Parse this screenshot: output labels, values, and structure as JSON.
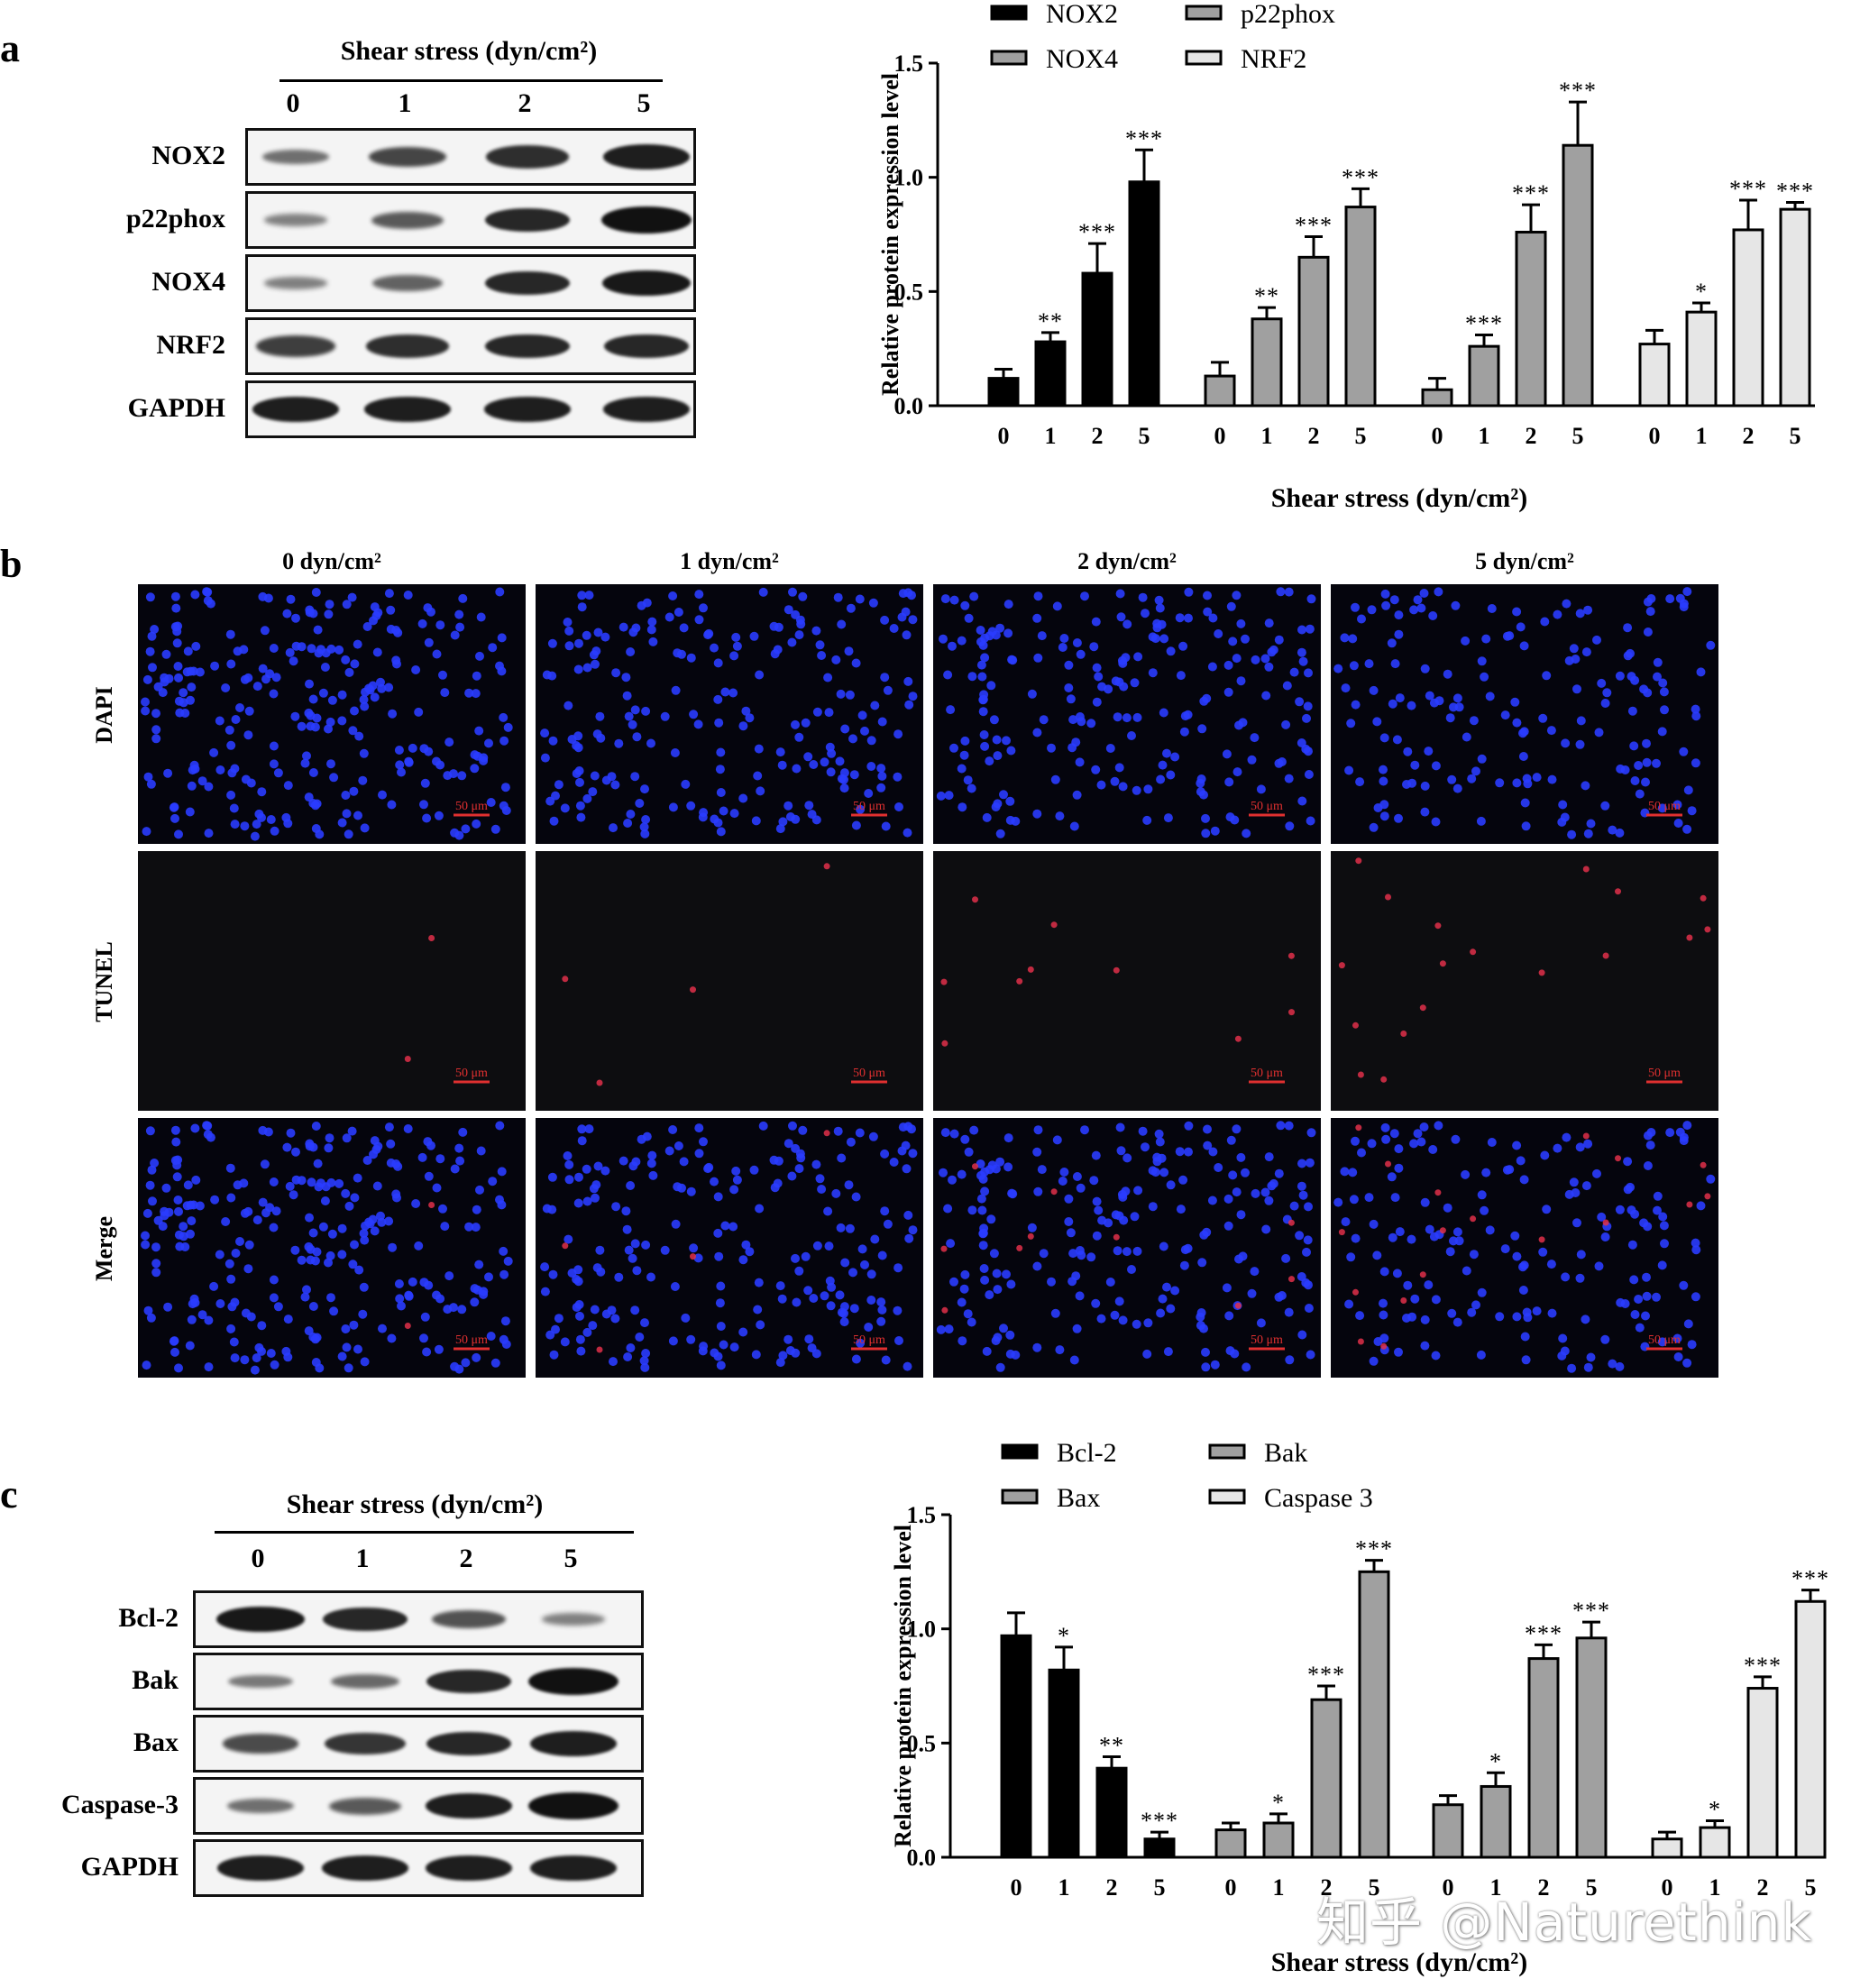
{
  "panel_a": {
    "letter": "a",
    "header": "Shear stress (dyn/cm²)",
    "lanes": [
      "0",
      "1",
      "2",
      "5"
    ],
    "bands": [
      {
        "label": "NOX2",
        "intensity": [
          0.35,
          0.65,
          0.8,
          0.9
        ]
      },
      {
        "label": "p22phox",
        "intensity": [
          0.25,
          0.5,
          0.85,
          1.0
        ]
      },
      {
        "label": "NOX4",
        "intensity": [
          0.25,
          0.45,
          0.85,
          0.95
        ]
      },
      {
        "label": "NRF2",
        "intensity": [
          0.7,
          0.8,
          0.85,
          0.85
        ]
      },
      {
        "label": "GAPDH",
        "intensity": [
          0.9,
          0.9,
          0.9,
          0.9
        ]
      }
    ]
  },
  "panel_b": {
    "letter": "b",
    "columns": [
      "0 dyn/cm²",
      "1 dyn/cm²",
      "2 dyn/cm²",
      "5 dyn/cm²"
    ],
    "rows": [
      "DAPI",
      "TUNEL",
      "Merge"
    ],
    "scale_bar": "50 μm",
    "colors": {
      "dapi": "#2a3cff",
      "tunel": "#e0304a",
      "background": "#05050d"
    },
    "tunel_counts": [
      2,
      4,
      10,
      18
    ]
  },
  "panel_c": {
    "letter": "c",
    "header": "Shear stress (dyn/cm²)",
    "lanes": [
      "0",
      "1",
      "2",
      "5"
    ],
    "bands": [
      {
        "label": "Bcl-2",
        "intensity": [
          0.95,
          0.85,
          0.55,
          0.25
        ]
      },
      {
        "label": "Bak",
        "intensity": [
          0.3,
          0.4,
          0.85,
          1.0
        ]
      },
      {
        "label": "Bax",
        "intensity": [
          0.6,
          0.75,
          0.85,
          0.9
        ]
      },
      {
        "label": "Caspase-3",
        "intensity": [
          0.35,
          0.5,
          0.9,
          1.0
        ]
      },
      {
        "label": "GAPDH",
        "intensity": [
          0.9,
          0.9,
          0.9,
          0.9
        ]
      }
    ]
  },
  "watermark": "知乎 @Naturethink",
  "chart_data": [
    {
      "type": "bar",
      "categories": [
        "0",
        "1",
        "2",
        "5"
      ],
      "ylabel": "Relative protein expression level",
      "xlabel": "Shear stress (dyn/cm²)",
      "ylim": [
        0,
        1.5
      ],
      "yticks": [
        "0.0",
        "0.5",
        "1.0",
        "1.5"
      ],
      "legend_placement": "top",
      "series": [
        {
          "name": "NOX2",
          "color": "#000000",
          "values": [
            0.12,
            0.28,
            0.58,
            0.98
          ],
          "errors": [
            0.04,
            0.04,
            0.13,
            0.14
          ],
          "sig": [
            "",
            "**",
            "***",
            "***"
          ]
        },
        {
          "name": "p22phox",
          "color": "#a0a0a0",
          "values": [
            0.13,
            0.38,
            0.65,
            0.87
          ],
          "errors": [
            0.06,
            0.05,
            0.09,
            0.08
          ],
          "sig": [
            "",
            "**",
            "***",
            "***"
          ]
        },
        {
          "name": "NOX4",
          "color": "#a0a0a0",
          "values": [
            0.07,
            0.26,
            0.76,
            1.14
          ],
          "errors": [
            0.05,
            0.05,
            0.12,
            0.19
          ],
          "sig": [
            "",
            "***",
            "***",
            "***"
          ]
        },
        {
          "name": "NRF2",
          "color": "#e6e6e6",
          "values": [
            0.27,
            0.41,
            0.77,
            0.86
          ],
          "errors": [
            0.06,
            0.04,
            0.13,
            0.03
          ],
          "sig": [
            "",
            "*",
            "***",
            "***"
          ]
        }
      ]
    },
    {
      "type": "bar",
      "categories": [
        "0",
        "1",
        "2",
        "5"
      ],
      "ylabel": "Relative protein expression level",
      "xlabel": "Shear stress (dyn/cm²)",
      "ylim": [
        0,
        1.5
      ],
      "yticks": [
        "0.0",
        "0.5",
        "1.0",
        "1.5"
      ],
      "legend_placement": "top",
      "series": [
        {
          "name": "Bcl-2",
          "color": "#000000",
          "values": [
            0.97,
            0.82,
            0.39,
            0.08
          ],
          "errors": [
            0.1,
            0.1,
            0.05,
            0.03
          ],
          "sig": [
            "",
            "*",
            "**",
            "***"
          ]
        },
        {
          "name": "Bak",
          "color": "#a0a0a0",
          "values": [
            0.12,
            0.15,
            0.69,
            1.25
          ],
          "errors": [
            0.03,
            0.04,
            0.06,
            0.05
          ],
          "sig": [
            "",
            "*",
            "***",
            "***"
          ]
        },
        {
          "name": "Bax",
          "color": "#a0a0a0",
          "values": [
            0.23,
            0.31,
            0.87,
            0.96
          ],
          "errors": [
            0.04,
            0.06,
            0.06,
            0.07
          ],
          "sig": [
            "",
            "*",
            "***",
            "***"
          ]
        },
        {
          "name": "Caspase 3",
          "color": "#e6e6e6",
          "values": [
            0.08,
            0.13,
            0.74,
            1.12
          ],
          "errors": [
            0.03,
            0.03,
            0.05,
            0.05
          ],
          "sig": [
            "",
            "*",
            "***",
            "***"
          ]
        }
      ]
    }
  ]
}
